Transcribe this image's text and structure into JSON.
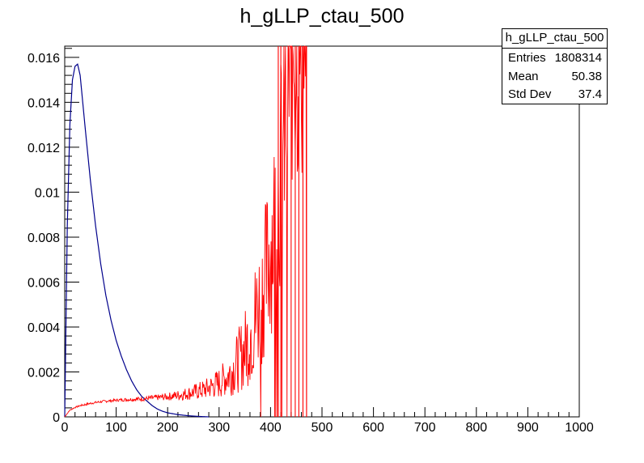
{
  "title": "h_gLLP_ctau_500",
  "stats": {
    "name": "h_gLLP_ctau_500",
    "rows": [
      {
        "label": "Entries",
        "value": "1808314"
      },
      {
        "label": "Mean",
        "value": "50.38"
      },
      {
        "label": "Std Dev",
        "value": "37.4"
      }
    ]
  },
  "chart_data": {
    "type": "line",
    "title": "h_gLLP_ctau_500",
    "xlabel": "",
    "ylabel": "",
    "xlim": [
      0,
      1000
    ],
    "ylim": [
      0,
      0.0165
    ],
    "x_ticks": [
      0,
      100,
      200,
      300,
      400,
      500,
      600,
      700,
      800,
      900,
      1000
    ],
    "y_ticks": [
      0,
      0.002,
      0.004,
      0.006,
      0.008,
      0.01,
      0.012,
      0.014,
      0.016
    ],
    "x_tick_labels": [
      "0",
      "100",
      "200",
      "300",
      "400",
      "500",
      "600",
      "700",
      "800",
      "900",
      "1000"
    ],
    "y_tick_labels": [
      "0",
      "0.002",
      "0.004",
      "0.006",
      "0.008",
      "0.01",
      "0.012",
      "0.014",
      "0.016"
    ],
    "grid": false,
    "colors": {
      "blue": "#00008b",
      "red": "#ff0000"
    },
    "series": [
      {
        "color": "#00008b",
        "x": [
          0,
          5,
          10,
          15,
          20,
          25,
          30,
          40,
          50,
          60,
          70,
          80,
          90,
          100,
          110,
          120,
          130,
          140,
          150,
          160,
          170,
          180,
          190,
          200,
          220,
          240,
          260,
          280
        ],
        "y": [
          0,
          0.0085,
          0.013,
          0.015,
          0.0156,
          0.0157,
          0.0152,
          0.0128,
          0.0105,
          0.0085,
          0.0068,
          0.0054,
          0.0043,
          0.0034,
          0.0027,
          0.0021,
          0.0016,
          0.0012,
          0.0009,
          0.0007,
          0.0005,
          0.00035,
          0.00025,
          0.00018,
          0.0001,
          5e-05,
          2e-05,
          0.0
        ]
      },
      {
        "color": "#ff0000",
        "x": [
          0,
          10,
          20,
          30,
          40,
          50,
          60,
          70,
          80,
          90,
          100,
          110,
          120,
          130,
          140,
          150,
          160,
          170,
          180,
          190,
          200,
          210,
          220,
          230,
          240,
          250,
          260,
          270,
          280,
          290,
          300,
          310,
          320,
          330,
          340,
          350,
          360,
          370,
          380,
          390,
          400,
          410,
          420,
          430,
          440,
          450,
          460,
          470
        ],
        "y": [
          0,
          0.0003,
          0.00042,
          0.0005,
          0.00055,
          0.0006,
          0.00064,
          0.00067,
          0.0007,
          0.00072,
          0.00074,
          0.00076,
          0.00077,
          0.00078,
          0.00079,
          0.0008,
          0.00082,
          0.00084,
          0.00086,
          0.00088,
          0.0009,
          0.00093,
          0.00096,
          0.001,
          0.00105,
          0.0011,
          0.00115,
          0.0012,
          0.0013,
          0.0014,
          0.0015,
          0.0017,
          0.0019,
          0.0022,
          0.0026,
          0.003,
          0.0036,
          0.0044,
          0.0052,
          0.0062,
          0.0075,
          0.009,
          0.011,
          0.0135,
          0.0165,
          0.0165,
          0.0165,
          0.0165
        ],
        "band": [
          0,
          2e-05,
          3e-05,
          4e-05,
          5e-05,
          5e-05,
          5e-05,
          5e-05,
          6e-05,
          6e-05,
          6e-05,
          7e-05,
          8e-05,
          8e-05,
          9e-05,
          0.0001,
          0.0001,
          0.00012,
          0.00013,
          0.00015,
          0.00017,
          0.0002,
          0.00023,
          0.00027,
          0.0003,
          0.00035,
          0.0004,
          0.00045,
          0.0005,
          0.0006,
          0.0007,
          0.0008,
          0.001,
          0.0012,
          0.0015,
          0.0018,
          0.0022,
          0.0026,
          0.003,
          0.0035,
          0.004,
          0.0046,
          0.0052,
          0.006,
          0.0065,
          0.0065,
          0.0065,
          0.0065
        ]
      }
    ]
  }
}
